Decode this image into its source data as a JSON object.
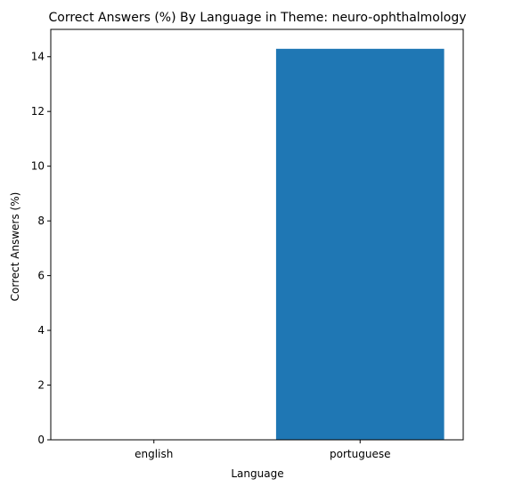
{
  "chart_data": {
    "type": "bar",
    "title": "Correct Answers (%) By Language in Theme: neuro-ophthalmology",
    "xlabel": "Language",
    "ylabel": "Correct Answers (%)",
    "categories": [
      "english",
      "portuguese"
    ],
    "values": [
      0,
      14.29
    ],
    "ylim": [
      0,
      15
    ],
    "yticks": [
      0,
      2,
      4,
      6,
      8,
      10,
      12,
      14
    ],
    "bar_color": "#1f77b4",
    "grid": false,
    "legend": "none"
  }
}
